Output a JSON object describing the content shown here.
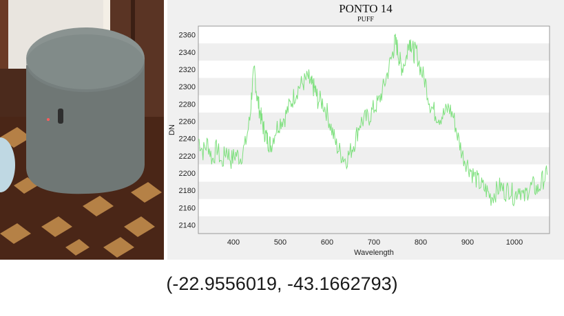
{
  "photo": {
    "description_icons": [
      "floor-parquet",
      "gray-cylindrical-pouf",
      "wooden-cabinet",
      "window-frame"
    ],
    "colors": {
      "pouf": "#6f7775",
      "wall": "#5a3424",
      "floor_dark": "#4a2617",
      "floor_light": "#c8914f"
    }
  },
  "chart_data": {
    "type": "line",
    "title": "PONTO 14",
    "subtitle": "PUFF",
    "xlabel": "Wavelength",
    "ylabel": "DN",
    "xlim": [
      325,
      1075
    ],
    "ylim": [
      2130,
      2370
    ],
    "xticks": [
      400,
      500,
      600,
      700,
      800,
      900,
      1000
    ],
    "yticks": [
      2140,
      2160,
      2180,
      2200,
      2220,
      2240,
      2260,
      2280,
      2300,
      2320,
      2340,
      2360
    ],
    "grid": "horizontal bands",
    "line_color": "#7ee07e",
    "series": [
      {
        "x": [
          325,
          335,
          345,
          355,
          365,
          375,
          385,
          395,
          405,
          415,
          425,
          435,
          440,
          445,
          450,
          455,
          460,
          465,
          470,
          475,
          480,
          490,
          500,
          510,
          520,
          530,
          540,
          550,
          560,
          565,
          570,
          575,
          580,
          590,
          600,
          610,
          620,
          630,
          640,
          650,
          660,
          670,
          680,
          690,
          700,
          710,
          720,
          730,
          740,
          745,
          750,
          755,
          760,
          770,
          775,
          780,
          785,
          790,
          800,
          810,
          820,
          830,
          840,
          850,
          860,
          870,
          880,
          890,
          900,
          910,
          920,
          930,
          940,
          950,
          960,
          970,
          980,
          990,
          1000,
          1010,
          1020,
          1030,
          1040,
          1050,
          1060,
          1070
        ],
        "values": [
          2240,
          2225,
          2235,
          2215,
          2230,
          2210,
          2228,
          2215,
          2222,
          2218,
          2232,
          2262,
          2300,
          2318,
          2290,
          2275,
          2262,
          2250,
          2242,
          2236,
          2232,
          2250,
          2260,
          2265,
          2278,
          2290,
          2300,
          2305,
          2310,
          2302,
          2300,
          2295,
          2285,
          2282,
          2270,
          2250,
          2232,
          2222,
          2215,
          2225,
          2238,
          2258,
          2262,
          2265,
          2275,
          2282,
          2298,
          2318,
          2338,
          2352,
          2345,
          2330,
          2322,
          2335,
          2355,
          2350,
          2338,
          2342,
          2320,
          2305,
          2280,
          2270,
          2265,
          2268,
          2276,
          2265,
          2240,
          2220,
          2210,
          2200,
          2192,
          2185,
          2180,
          2172,
          2178,
          2185,
          2178,
          2182,
          2172,
          2185,
          2170,
          2182,
          2185,
          2180,
          2192,
          2198
        ]
      }
    ]
  },
  "caption": {
    "coordinates": "(-22.9556019, -43.1662793)"
  }
}
